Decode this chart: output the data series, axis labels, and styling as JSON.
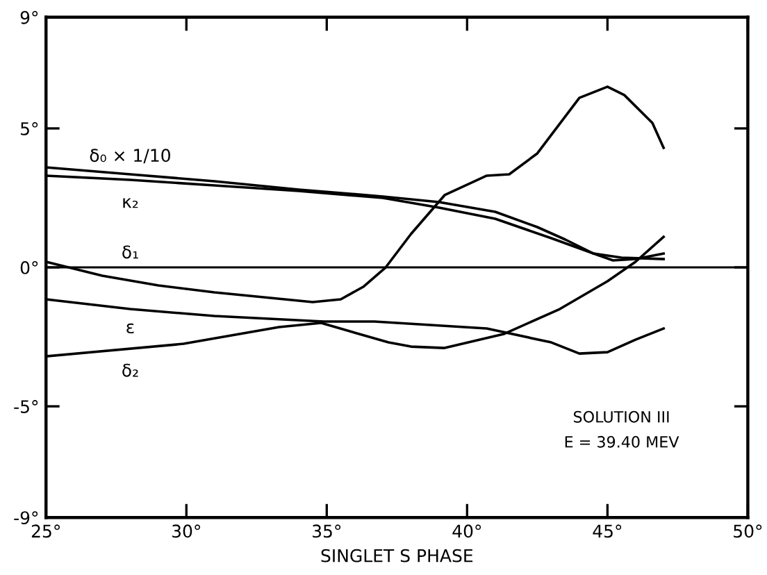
{
  "chart_data": {
    "type": "line",
    "xlabel": "SINGLET S PHASE",
    "xlim": [
      25,
      50
    ],
    "ylim": [
      -9,
      9
    ],
    "xticks": [
      {
        "value": 25,
        "label": "25°"
      },
      {
        "value": 30,
        "label": "30°"
      },
      {
        "value": 35,
        "label": "35°"
      },
      {
        "value": 40,
        "label": "40°"
      },
      {
        "value": 45,
        "label": "45°"
      },
      {
        "value": 50,
        "label": "50°"
      }
    ],
    "yticks": [
      {
        "value": -9,
        "label": "-9°"
      },
      {
        "value": -5,
        "label": "-5°"
      },
      {
        "value": 0,
        "label": "0°"
      },
      {
        "value": 5,
        "label": "5°"
      },
      {
        "value": 9,
        "label": "9°"
      }
    ],
    "grid": false,
    "legend": false,
    "marker": "none",
    "line_style": "solid",
    "ref_lines": [
      {
        "axis": "y",
        "value": 0,
        "color": "#000000"
      }
    ],
    "series": [
      {
        "name": "δ₀ × 1/10",
        "color": "#000000",
        "x": [
          25,
          28,
          31,
          34,
          37,
          39,
          41,
          42.5,
          43.5,
          44.5,
          45.5,
          47
        ],
        "values": [
          3.6,
          3.35,
          3.1,
          2.8,
          2.55,
          2.35,
          2.0,
          1.45,
          1.0,
          0.5,
          0.35,
          0.3
        ]
      },
      {
        "name": "κ₂",
        "color": "#000000",
        "x": [
          25,
          28,
          31,
          34,
          37,
          39,
          41,
          43,
          44.5,
          45.2,
          46,
          47
        ],
        "values": [
          3.3,
          3.15,
          2.95,
          2.75,
          2.5,
          2.15,
          1.75,
          1.05,
          0.5,
          0.25,
          0.3,
          0.5
        ]
      },
      {
        "name": "δ₁",
        "color": "#000000",
        "x": [
          25,
          27,
          29,
          31,
          33,
          34.5,
          35.5,
          36.3,
          37.1,
          38,
          39.2,
          40.7,
          41.5,
          42.5,
          44,
          45,
          45.6,
          46.6,
          47
        ],
        "values": [
          0.2,
          -0.3,
          -0.65,
          -0.9,
          -1.1,
          -1.25,
          -1.15,
          -0.7,
          0,
          1.2,
          2.6,
          3.3,
          3.35,
          4.1,
          6.1,
          6.5,
          6.2,
          5.2,
          4.3
        ]
      },
      {
        "name": "ε",
        "color": "#000000",
        "x": [
          25,
          28,
          31,
          34.9,
          36.7,
          40.7,
          43,
          44,
          45,
          46,
          47
        ],
        "values": [
          -1.15,
          -1.5,
          -1.75,
          -1.95,
          -1.95,
          -2.2,
          -2.7,
          -3.1,
          -3.05,
          -2.6,
          -2.2
        ]
      },
      {
        "name": "δ₂",
        "color": "#000000",
        "x": [
          25,
          29.9,
          33.3,
          34.8,
          37.2,
          38,
          39.2,
          41.3,
          43.3,
          45,
          46,
          47
        ],
        "values": [
          -3.2,
          -2.75,
          -2.15,
          -2.0,
          -2.7,
          -2.85,
          -2.9,
          -2.4,
          -1.5,
          -0.5,
          0.2,
          1.1
        ]
      }
    ],
    "annotations": [
      "SOLUTION III",
      "E = 39.40 MEV"
    ]
  }
}
